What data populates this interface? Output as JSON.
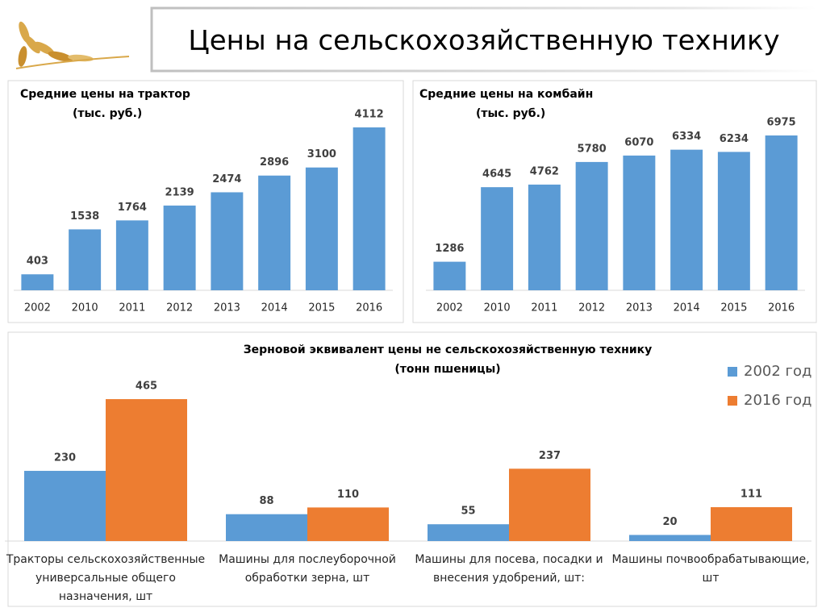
{
  "title": "Цены на сельскохозяйственную технику",
  "chart_data": [
    {
      "type": "bar",
      "title": "Средние цены на трактор",
      "subtitle": "(тыс. руб.)",
      "categories": [
        "2002",
        "2010",
        "2011",
        "2012",
        "2013",
        "2014",
        "2015",
        "2016"
      ],
      "values": [
        403,
        1538,
        1764,
        2139,
        2474,
        2896,
        3100,
        4112
      ],
      "color": "#5b9bd5"
    },
    {
      "type": "bar",
      "title": "Средние цены на комбайн",
      "subtitle": "(тыс. руб.)",
      "categories": [
        "2002",
        "2010",
        "2011",
        "2012",
        "2013",
        "2014",
        "2015",
        "2016"
      ],
      "values": [
        1286,
        4645,
        4762,
        5780,
        6070,
        6334,
        6234,
        6975
      ],
      "color": "#5b9bd5"
    },
    {
      "type": "bar",
      "title": "Зерновой эквивалент цены не сельскохозяйственную технику",
      "subtitle": "(тонн пшеницы)",
      "categories": [
        "Тракторы сельскохозяйственные универсальные общего назначения, шт",
        "Машины для послеуборочной обработки зерна, шт",
        "Машины для посева, посадки и внесения удобрений, шт:",
        "Машины почвообрабатывающие, шт"
      ],
      "series": [
        {
          "name": "2002 год",
          "color": "#5b9bd5",
          "values": [
            230,
            88,
            55,
            20
          ]
        },
        {
          "name": "2016 год",
          "color": "#ed7d31",
          "values": [
            465,
            110,
            237,
            111
          ]
        }
      ],
      "legend": "top-right"
    }
  ]
}
